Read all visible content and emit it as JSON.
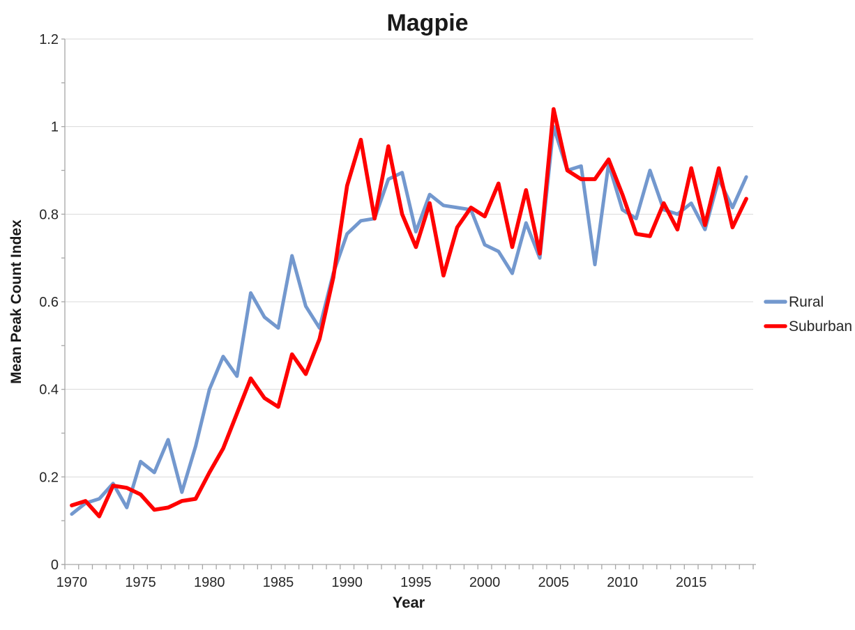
{
  "chart_data": {
    "type": "line",
    "title": "Magpie",
    "xlabel": "Year",
    "ylabel": "Mean Peak Count Index",
    "ylim": [
      0,
      1.2
    ],
    "grid": true,
    "legend_position": "right",
    "y_ticks": [
      {
        "v": 0,
        "label": "0"
      },
      {
        "v": 0.2,
        "label": "0.2"
      },
      {
        "v": 0.4,
        "label": "0.4"
      },
      {
        "v": 0.6,
        "label": "0.6"
      },
      {
        "v": 0.8,
        "label": "0.8"
      },
      {
        "v": 1.0,
        "label": "1"
      },
      {
        "v": 1.2,
        "label": "1.2"
      }
    ],
    "x_tick_labels": [
      "1970",
      "1975",
      "1980",
      "1985",
      "1990",
      "1995",
      "2000",
      "2005",
      "2010",
      "2015"
    ],
    "x": [
      1970,
      1971,
      1972,
      1973,
      1974,
      1975,
      1976,
      1977,
      1978,
      1979,
      1980,
      1981,
      1982,
      1983,
      1984,
      1985,
      1986,
      1987,
      1988,
      1989,
      1990,
      1991,
      1992,
      1993,
      1994,
      1995,
      1996,
      1997,
      1998,
      1999,
      2000,
      2001,
      2002,
      2003,
      2004,
      2005,
      2006,
      2007,
      2008,
      2009,
      2010,
      2011,
      2012,
      2013,
      2014,
      2015,
      2016,
      2017,
      2018,
      2019
    ],
    "series": [
      {
        "name": "Rural",
        "color": "#7398CE",
        "values": [
          0.115,
          0.14,
          0.15,
          0.185,
          0.13,
          0.235,
          0.21,
          0.285,
          0.165,
          0.27,
          0.4,
          0.475,
          0.43,
          0.62,
          0.565,
          0.54,
          0.705,
          0.59,
          0.54,
          0.665,
          0.755,
          0.785,
          0.79,
          0.88,
          0.895,
          0.76,
          0.845,
          0.82,
          0.815,
          0.81,
          0.73,
          0.715,
          0.665,
          0.78,
          0.7,
          1.0,
          0.9,
          0.91,
          0.685,
          0.915,
          0.81,
          0.79,
          0.9,
          0.81,
          0.8,
          0.825,
          0.765,
          0.88,
          0.815,
          0.885
        ]
      },
      {
        "name": "Suburban",
        "color": "#FF0000",
        "values": [
          0.135,
          0.145,
          0.11,
          0.18,
          0.175,
          0.16,
          0.125,
          0.13,
          0.145,
          0.15,
          0.21,
          0.265,
          0.345,
          0.425,
          0.38,
          0.36,
          0.48,
          0.435,
          0.515,
          0.655,
          0.865,
          0.97,
          0.79,
          0.955,
          0.8,
          0.725,
          0.825,
          0.66,
          0.77,
          0.815,
          0.795,
          0.87,
          0.725,
          0.855,
          0.71,
          1.04,
          0.9,
          0.88,
          0.88,
          0.925,
          0.845,
          0.755,
          0.75,
          0.825,
          0.765,
          0.905,
          0.775,
          0.905,
          0.77,
          0.835
        ]
      }
    ],
    "colors": {
      "gridline": "#D9D9D9",
      "axis": "#A6A6A6",
      "text": "#262626"
    }
  }
}
